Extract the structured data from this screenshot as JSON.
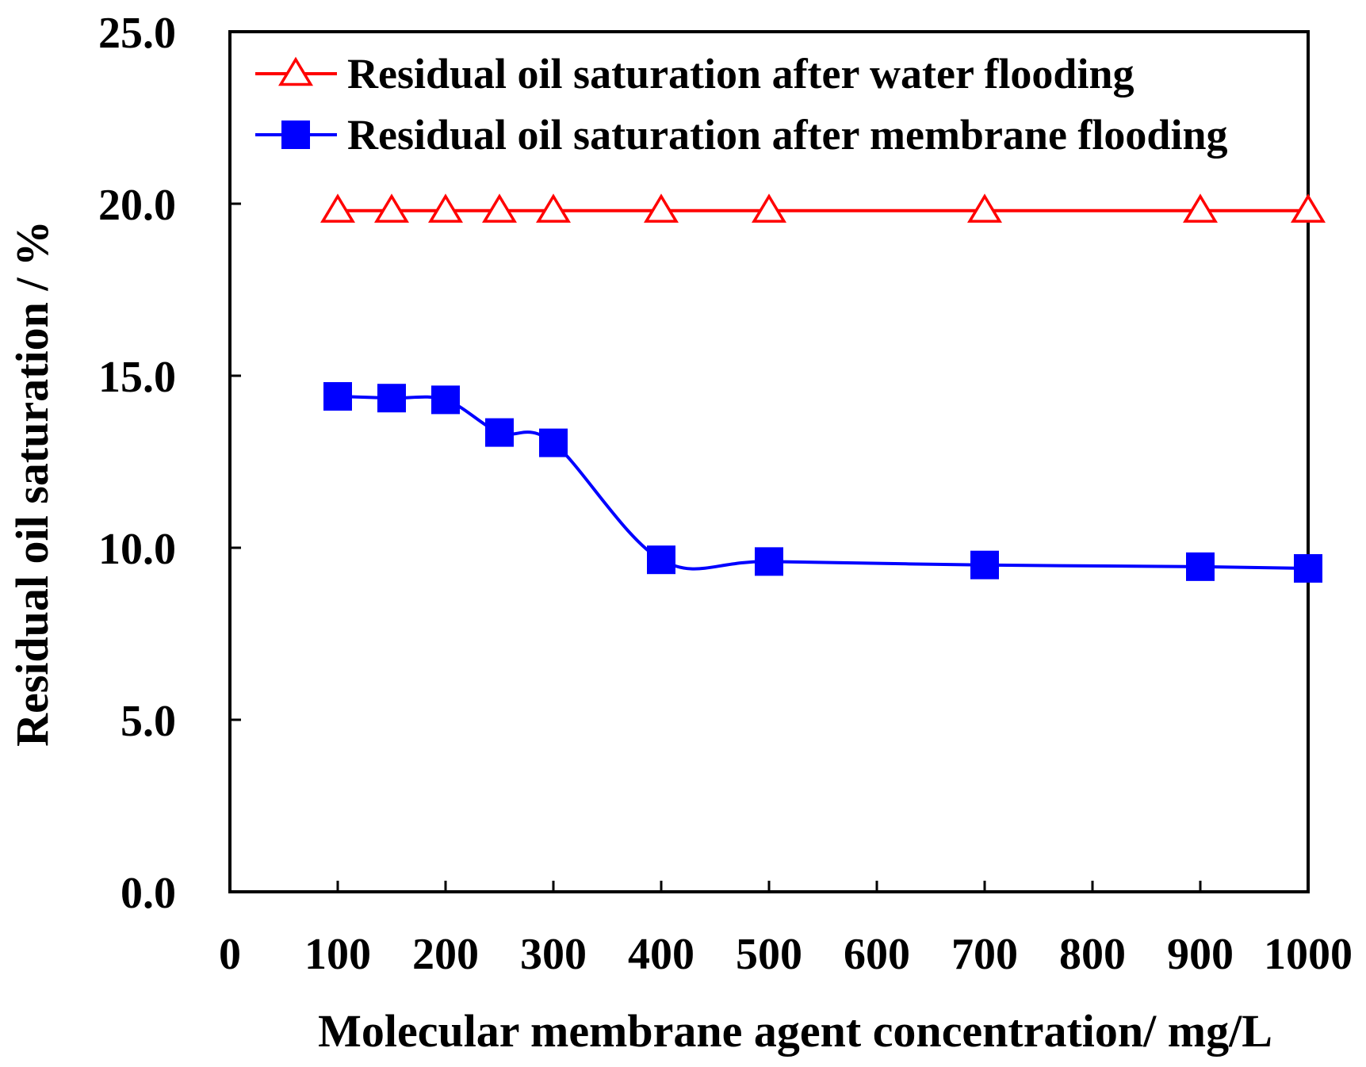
{
  "chart_data": {
    "type": "line",
    "title": "",
    "xlabel": "Molecular membrane agent concentration/ mg/L",
    "ylabel": "Residual oil saturation / %",
    "xlim": [
      0,
      1000
    ],
    "ylim": [
      0,
      25
    ],
    "x_ticks": [
      "0",
      "100",
      "200",
      "300",
      "400",
      "500",
      "600",
      "700",
      "800",
      "900",
      "1000"
    ],
    "y_ticks": [
      "0.0",
      "5.0",
      "10.0",
      "15.0",
      "20.0",
      "25.0"
    ],
    "grid": false,
    "legend_position": "top-left",
    "series": [
      {
        "name": "Residual oil saturation after water flooding",
        "color": "#ff0000",
        "marker": "open-triangle",
        "x": [
          100,
          150,
          200,
          250,
          300,
          400,
          500,
          700,
          900,
          1000
        ],
        "values": [
          19.8,
          19.8,
          19.8,
          19.8,
          19.8,
          19.8,
          19.8,
          19.8,
          19.8,
          19.8
        ]
      },
      {
        "name": "Residual oil saturation after membrane flooding",
        "color": "#0000ff",
        "marker": "filled-square",
        "x": [
          100,
          150,
          200,
          250,
          300,
          400,
          500,
          700,
          900,
          1000
        ],
        "values": [
          14.4,
          14.35,
          14.3,
          13.35,
          13.05,
          9.65,
          9.6,
          9.5,
          9.45,
          9.4
        ]
      }
    ]
  }
}
